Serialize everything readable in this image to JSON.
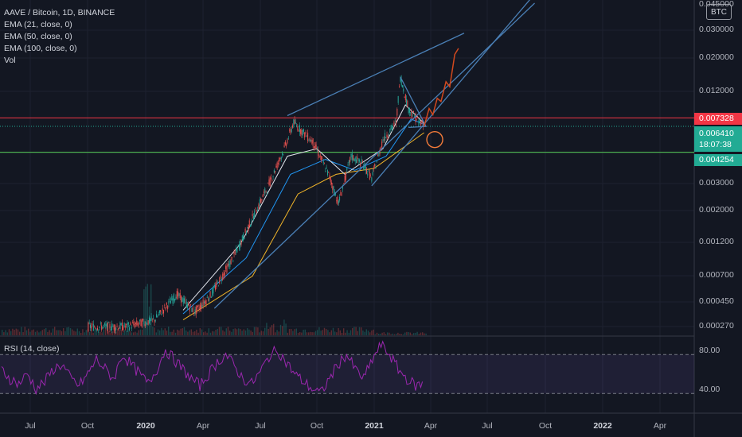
{
  "header": {
    "symbol": "AAVE / Bitcoin, 1D, BINANCE",
    "indicators": [
      "EMA (21, close, 0)",
      "EMA (50, close, 0)",
      "EMA (100, close, 0)",
      "Vol"
    ],
    "currency_badge": "BTC"
  },
  "rsi": {
    "label": "RSI (14, close)",
    "ticks": [
      "80.00",
      "40.00"
    ],
    "upper_band": 70,
    "lower_band": 30
  },
  "price_labels": {
    "resistance": {
      "value": "0.007328",
      "color": "#f23645"
    },
    "current": {
      "value": "0.006410",
      "countdown": "18:07:38",
      "color": "#22ab94"
    },
    "support": {
      "value": "0.004254",
      "color": "#22ab94"
    }
  },
  "chart_data": {
    "type": "candlestick",
    "title": "AAVE / Bitcoin, 1D, BINANCE",
    "y_scale": "log",
    "y_ticks": [
      "0.045000",
      "0.030000",
      "0.020000",
      "0.012000",
      "0.007328",
      "0.006410",
      "0.004254",
      "0.003000",
      "0.002000",
      "0.001200",
      "0.000700",
      "0.000450",
      "0.000270"
    ],
    "x_ticks": [
      "Jul",
      "Oct",
      "2020",
      "Apr",
      "Jul",
      "Oct",
      "2021",
      "Apr",
      "Jul",
      "Oct",
      "2022",
      "Apr"
    ],
    "x_ticks_bold": [
      "2020",
      "2021",
      "2022"
    ],
    "price_path": [
      [
        "2019-10-01",
        0.00027
      ],
      [
        "2019-12-01",
        0.00027
      ],
      [
        "2020-01-15",
        0.0003
      ],
      [
        "2020-02-20",
        0.00045
      ],
      [
        "2020-03-20",
        0.00034
      ],
      [
        "2020-04-15",
        0.00045
      ],
      [
        "2020-05-20",
        0.0008
      ],
      [
        "2020-06-20",
        0.0015
      ],
      [
        "2020-07-15",
        0.0025
      ],
      [
        "2020-08-10",
        0.0045
      ],
      [
        "2020-08-25",
        0.0068
      ],
      [
        "2020-09-10",
        0.0058
      ],
      [
        "2020-09-25",
        0.005
      ],
      [
        "2020-10-20",
        0.003
      ],
      [
        "2020-11-05",
        0.0019
      ],
      [
        "2020-11-25",
        0.004
      ],
      [
        "2020-12-15",
        0.0035
      ],
      [
        "2020-12-28",
        0.0028
      ],
      [
        "2021-01-15",
        0.0052
      ],
      [
        "2021-02-05",
        0.0068
      ],
      [
        "2021-02-12",
        0.014
      ],
      [
        "2021-02-25",
        0.0085
      ],
      [
        "2021-03-10",
        0.0072
      ],
      [
        "2021-03-22",
        0.0064
      ]
    ],
    "ema21": [
      [
        "2020-03-01",
        0.00035
      ],
      [
        "2020-06-01",
        0.001
      ],
      [
        "2020-08-15",
        0.004
      ],
      [
        "2020-10-01",
        0.0045
      ],
      [
        "2020-11-15",
        0.003
      ],
      [
        "2021-01-15",
        0.0045
      ],
      [
        "2021-02-20",
        0.009
      ],
      [
        "2021-03-22",
        0.0067
      ]
    ],
    "ema50": [
      [
        "2020-03-01",
        0.00033
      ],
      [
        "2020-06-10",
        0.0008
      ],
      [
        "2020-08-20",
        0.003
      ],
      [
        "2020-10-15",
        0.0038
      ],
      [
        "2020-12-01",
        0.0032
      ],
      [
        "2021-01-20",
        0.004
      ],
      [
        "2021-03-01",
        0.0072
      ],
      [
        "2021-03-22",
        0.0066
      ]
    ],
    "ema100": [
      [
        "2020-03-01",
        0.0003
      ],
      [
        "2020-06-20",
        0.0006
      ],
      [
        "2020-09-01",
        0.0022
      ],
      [
        "2020-11-01",
        0.003
      ],
      [
        "2021-01-01",
        0.0033
      ],
      [
        "2021-03-22",
        0.0058
      ]
    ],
    "drawings": {
      "upper_trendline": [
        [
          "2020-08-15",
          0.0076
        ],
        [
          "2021-05-25",
          0.028
        ]
      ],
      "lower_trendline": [
        [
          "2020-04-20",
          0.00036
        ],
        [
          "2021-09-15",
          0.045
        ]
      ],
      "inner_trendline": [
        [
          "2020-12-28",
          0.0025
        ],
        [
          "2021-09-15",
          0.052
        ]
      ],
      "projection_path": [
        [
          "2021-03-22",
          0.0064
        ],
        [
          "2021-03-30",
          0.0085
        ],
        [
          "2021-04-05",
          0.0077
        ],
        [
          "2021-04-12",
          0.01
        ],
        [
          "2021-04-18",
          0.0095
        ],
        [
          "2021-04-26",
          0.013
        ],
        [
          "2021-05-02",
          0.012
        ],
        [
          "2021-05-10",
          0.02
        ],
        [
          "2021-05-16",
          0.022
        ]
      ],
      "resistance_level": 0.007328,
      "current_level": 0.00641,
      "support_level": 0.004254
    },
    "rsi_path": [
      55,
      45,
      40,
      50,
      35,
      42,
      55,
      60,
      45,
      38,
      50,
      65,
      55,
      45,
      70,
      60,
      50,
      40,
      55,
      75,
      65,
      55,
      45,
      38,
      50,
      62,
      70,
      58,
      45,
      40,
      52,
      68,
      75,
      62,
      50,
      42,
      35,
      30,
      45,
      60,
      70,
      55,
      45,
      65,
      80,
      70,
      55,
      45,
      38,
      40
    ]
  }
}
